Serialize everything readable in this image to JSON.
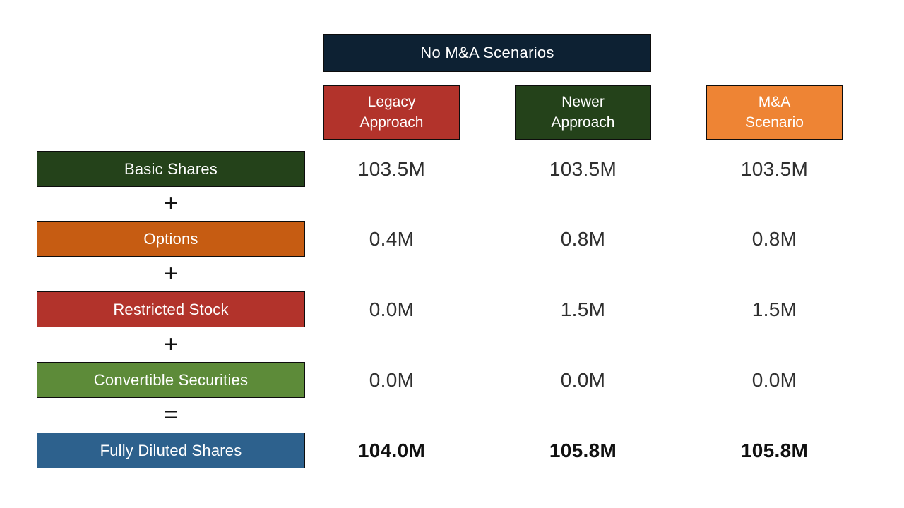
{
  "title": "No M&A Scenarios",
  "columns": [
    {
      "label": "Legacy Approach",
      "line1": "Legacy",
      "line2": "Approach",
      "color": "#b2332b"
    },
    {
      "label": "Newer Approach",
      "line1": "Newer",
      "line2": "Approach",
      "color": "#24421a"
    },
    {
      "label": "M&A Scenario",
      "line1": "M&A",
      "line2": "Scenario",
      "color": "#ee8434"
    }
  ],
  "operators": [
    "+",
    "+",
    "+",
    "="
  ],
  "rows": [
    {
      "label": "Basic Shares",
      "color": "#24421a",
      "bold": false,
      "values": [
        "103.5M",
        "103.5M",
        "103.5M"
      ]
    },
    {
      "label": "Options",
      "color": "#c65c12",
      "bold": false,
      "values": [
        "0.4M",
        "0.8M",
        "0.8M"
      ]
    },
    {
      "label": "Restricted Stock",
      "color": "#b2332b",
      "bold": false,
      "values": [
        "0.0M",
        "1.5M",
        "1.5M"
      ]
    },
    {
      "label": "Convertible Securities",
      "color": "#5d8b39",
      "bold": false,
      "values": [
        "0.0M",
        "0.0M",
        "0.0M"
      ]
    },
    {
      "label": "Fully Diluted Shares",
      "color": "#2d618d",
      "bold": true,
      "values": [
        "104.0M",
        "105.8M",
        "105.8M"
      ]
    }
  ],
  "colors": {
    "header_navy": "#0d2133",
    "legacy_red": "#b2332b",
    "newer_dark_green": "#24421a",
    "mna_orange": "#ee8434",
    "options_burnt_orange": "#c65c12",
    "convertible_green": "#5d8b39",
    "fully_diluted_blue": "#2d618d",
    "value_text": "#2f2f2f",
    "background": "#ffffff"
  },
  "chart_data": {
    "type": "table",
    "title": "No M&A Scenarios",
    "column_headers": [
      "Legacy Approach",
      "Newer Approach",
      "M&A Scenario"
    ],
    "row_headers": [
      "Basic Shares",
      "Options",
      "Restricted Stock",
      "Convertible Securities",
      "Fully Diluted Shares"
    ],
    "unit": "M shares",
    "values_m": [
      [
        103.5,
        103.5,
        103.5
      ],
      [
        0.4,
        0.8,
        0.8
      ],
      [
        0.0,
        1.5,
        1.5
      ],
      [
        0.0,
        0.0,
        0.0
      ],
      [
        104.0,
        105.8,
        105.8
      ]
    ],
    "operators_between_rows": [
      "+",
      "+",
      "+",
      "="
    ],
    "notes": "Fully Diluted Shares = Basic Shares + Options + Restricted Stock + Convertible Securities; bottom row shown bold"
  }
}
